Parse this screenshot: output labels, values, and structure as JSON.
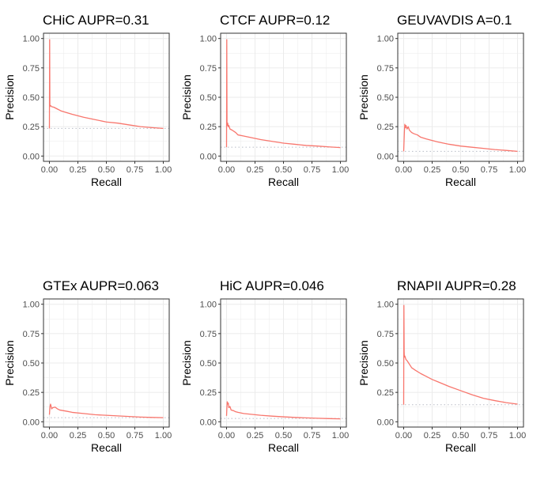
{
  "colors": {
    "curve": "#f8766d",
    "baseline": "#b8bcc6",
    "grid": "#ebebeb",
    "panel_border": "#333333"
  },
  "chart_data": [
    {
      "type": "line",
      "title": "CHiC AUPR=0.31",
      "xlabel": "Recall",
      "ylabel": "Precision",
      "xlim": [
        0,
        1
      ],
      "ylim": [
        0,
        1
      ],
      "x_ticks": [
        "0.00",
        "0.25",
        "0.50",
        "0.75",
        "1.00"
      ],
      "y_ticks": [
        "0.00",
        "0.25",
        "0.50",
        "0.75",
        "1.00"
      ],
      "grid": true,
      "baseline": 0.235,
      "series": [
        {
          "x": [
            0,
            0.002,
            0.004,
            0.006,
            0.01,
            0.02,
            0.04,
            0.07,
            0.1,
            0.15,
            0.2,
            0.3,
            0.4,
            0.5,
            0.6,
            0.7,
            0.8,
            0.9,
            1.0
          ],
          "y": [
            0.235,
            0.99,
            0.42,
            0.43,
            0.43,
            0.42,
            0.415,
            0.4,
            0.385,
            0.37,
            0.355,
            0.33,
            0.31,
            0.29,
            0.28,
            0.265,
            0.25,
            0.242,
            0.235
          ]
        }
      ]
    },
    {
      "type": "line",
      "title": "CTCF AUPR=0.12",
      "xlabel": "Recall",
      "ylabel": "Precision",
      "xlim": [
        0,
        1
      ],
      "ylim": [
        0,
        1
      ],
      "x_ticks": [
        "0.00",
        "0.25",
        "0.50",
        "0.75",
        "1.00"
      ],
      "y_ticks": [
        "0.00",
        "0.25",
        "0.50",
        "0.75",
        "1.00"
      ],
      "grid": true,
      "baseline": 0.075,
      "series": [
        {
          "x": [
            0,
            0.002,
            0.004,
            0.006,
            0.01,
            0.015,
            0.02,
            0.03,
            0.05,
            0.08,
            0.1,
            0.15,
            0.2,
            0.3,
            0.4,
            0.5,
            0.6,
            0.7,
            0.8,
            0.9,
            1.0
          ],
          "y": [
            0.075,
            0.99,
            0.28,
            0.26,
            0.28,
            0.25,
            0.26,
            0.23,
            0.22,
            0.2,
            0.18,
            0.17,
            0.16,
            0.14,
            0.125,
            0.11,
            0.1,
            0.09,
            0.085,
            0.078,
            0.072
          ]
        }
      ]
    },
    {
      "type": "line",
      "title": "GEUVAVDIS A=0.1",
      "xlabel": "Recall",
      "ylabel": "Precision",
      "xlim": [
        0,
        1
      ],
      "ylim": [
        0,
        1
      ],
      "x_ticks": [
        "0.00",
        "0.25",
        "0.50",
        "0.75",
        "1.00"
      ],
      "y_ticks": [
        "0.00",
        "0.25",
        "0.50",
        "0.75",
        "1.00"
      ],
      "grid": true,
      "baseline": 0.04,
      "series": [
        {
          "x": [
            0,
            0.003,
            0.006,
            0.01,
            0.015,
            0.02,
            0.03,
            0.04,
            0.05,
            0.07,
            0.09,
            0.12,
            0.15,
            0.2,
            0.3,
            0.4,
            0.5,
            0.6,
            0.7,
            0.8,
            0.9,
            1.0
          ],
          "y": [
            0.04,
            0.12,
            0.2,
            0.27,
            0.24,
            0.26,
            0.23,
            0.25,
            0.22,
            0.2,
            0.19,
            0.18,
            0.16,
            0.145,
            0.12,
            0.1,
            0.085,
            0.075,
            0.065,
            0.055,
            0.048,
            0.04
          ]
        }
      ]
    },
    {
      "type": "line",
      "title": "GTEx AUPR=0.063",
      "xlabel": "Recall",
      "ylabel": "Precision",
      "xlim": [
        0,
        1
      ],
      "ylim": [
        0,
        1
      ],
      "x_ticks": [
        "0.00",
        "0.25",
        "0.50",
        "0.75",
        "1.00"
      ],
      "y_ticks": [
        "0.00",
        "0.25",
        "0.50",
        "0.75",
        "1.00"
      ],
      "grid": true,
      "baseline": 0.035,
      "series": [
        {
          "x": [
            0,
            0.005,
            0.01,
            0.02,
            0.03,
            0.05,
            0.07,
            0.09,
            0.12,
            0.15,
            0.2,
            0.3,
            0.4,
            0.5,
            0.6,
            0.7,
            0.8,
            0.9,
            1.0
          ],
          "y": [
            0.06,
            0.13,
            0.15,
            0.11,
            0.12,
            0.125,
            0.11,
            0.1,
            0.095,
            0.09,
            0.08,
            0.07,
            0.06,
            0.055,
            0.05,
            0.045,
            0.04,
            0.037,
            0.035
          ]
        }
      ]
    },
    {
      "type": "line",
      "title": "HiC AUPR=0.046",
      "xlabel": "Recall",
      "ylabel": "Precision",
      "xlim": [
        0,
        1
      ],
      "ylim": [
        0,
        1
      ],
      "x_ticks": [
        "0.00",
        "0.25",
        "0.50",
        "0.75",
        "1.00"
      ],
      "y_ticks": [
        "0.00",
        "0.25",
        "0.50",
        "0.75",
        "1.00"
      ],
      "grid": true,
      "baseline": 0.028,
      "series": [
        {
          "x": [
            0,
            0.003,
            0.006,
            0.01,
            0.015,
            0.02,
            0.03,
            0.04,
            0.06,
            0.08,
            0.1,
            0.15,
            0.2,
            0.3,
            0.4,
            0.5,
            0.6,
            0.7,
            0.8,
            0.9,
            1.0
          ],
          "y": [
            0.05,
            0.12,
            0.17,
            0.15,
            0.16,
            0.12,
            0.13,
            0.1,
            0.095,
            0.085,
            0.08,
            0.07,
            0.065,
            0.055,
            0.048,
            0.042,
            0.037,
            0.033,
            0.03,
            0.027,
            0.025
          ]
        }
      ]
    },
    {
      "type": "line",
      "title": "RNAPII AUPR=0.28",
      "xlabel": "Recall",
      "ylabel": "Precision",
      "xlim": [
        0,
        1
      ],
      "ylim": [
        0,
        1
      ],
      "x_ticks": [
        "0.00",
        "0.25",
        "0.50",
        "0.75",
        "1.00"
      ],
      "y_ticks": [
        "0.00",
        "0.25",
        "0.50",
        "0.75",
        "1.00"
      ],
      "grid": true,
      "baseline": 0.145,
      "series": [
        {
          "x": [
            0,
            0.002,
            0.004,
            0.006,
            0.01,
            0.02,
            0.03,
            0.05,
            0.07,
            0.1,
            0.15,
            0.2,
            0.25,
            0.3,
            0.4,
            0.5,
            0.6,
            0.7,
            0.8,
            0.9,
            1.0
          ],
          "y": [
            0.145,
            0.99,
            0.6,
            0.55,
            0.56,
            0.53,
            0.52,
            0.49,
            0.46,
            0.44,
            0.41,
            0.385,
            0.36,
            0.34,
            0.3,
            0.265,
            0.23,
            0.2,
            0.18,
            0.163,
            0.15
          ]
        }
      ]
    }
  ]
}
